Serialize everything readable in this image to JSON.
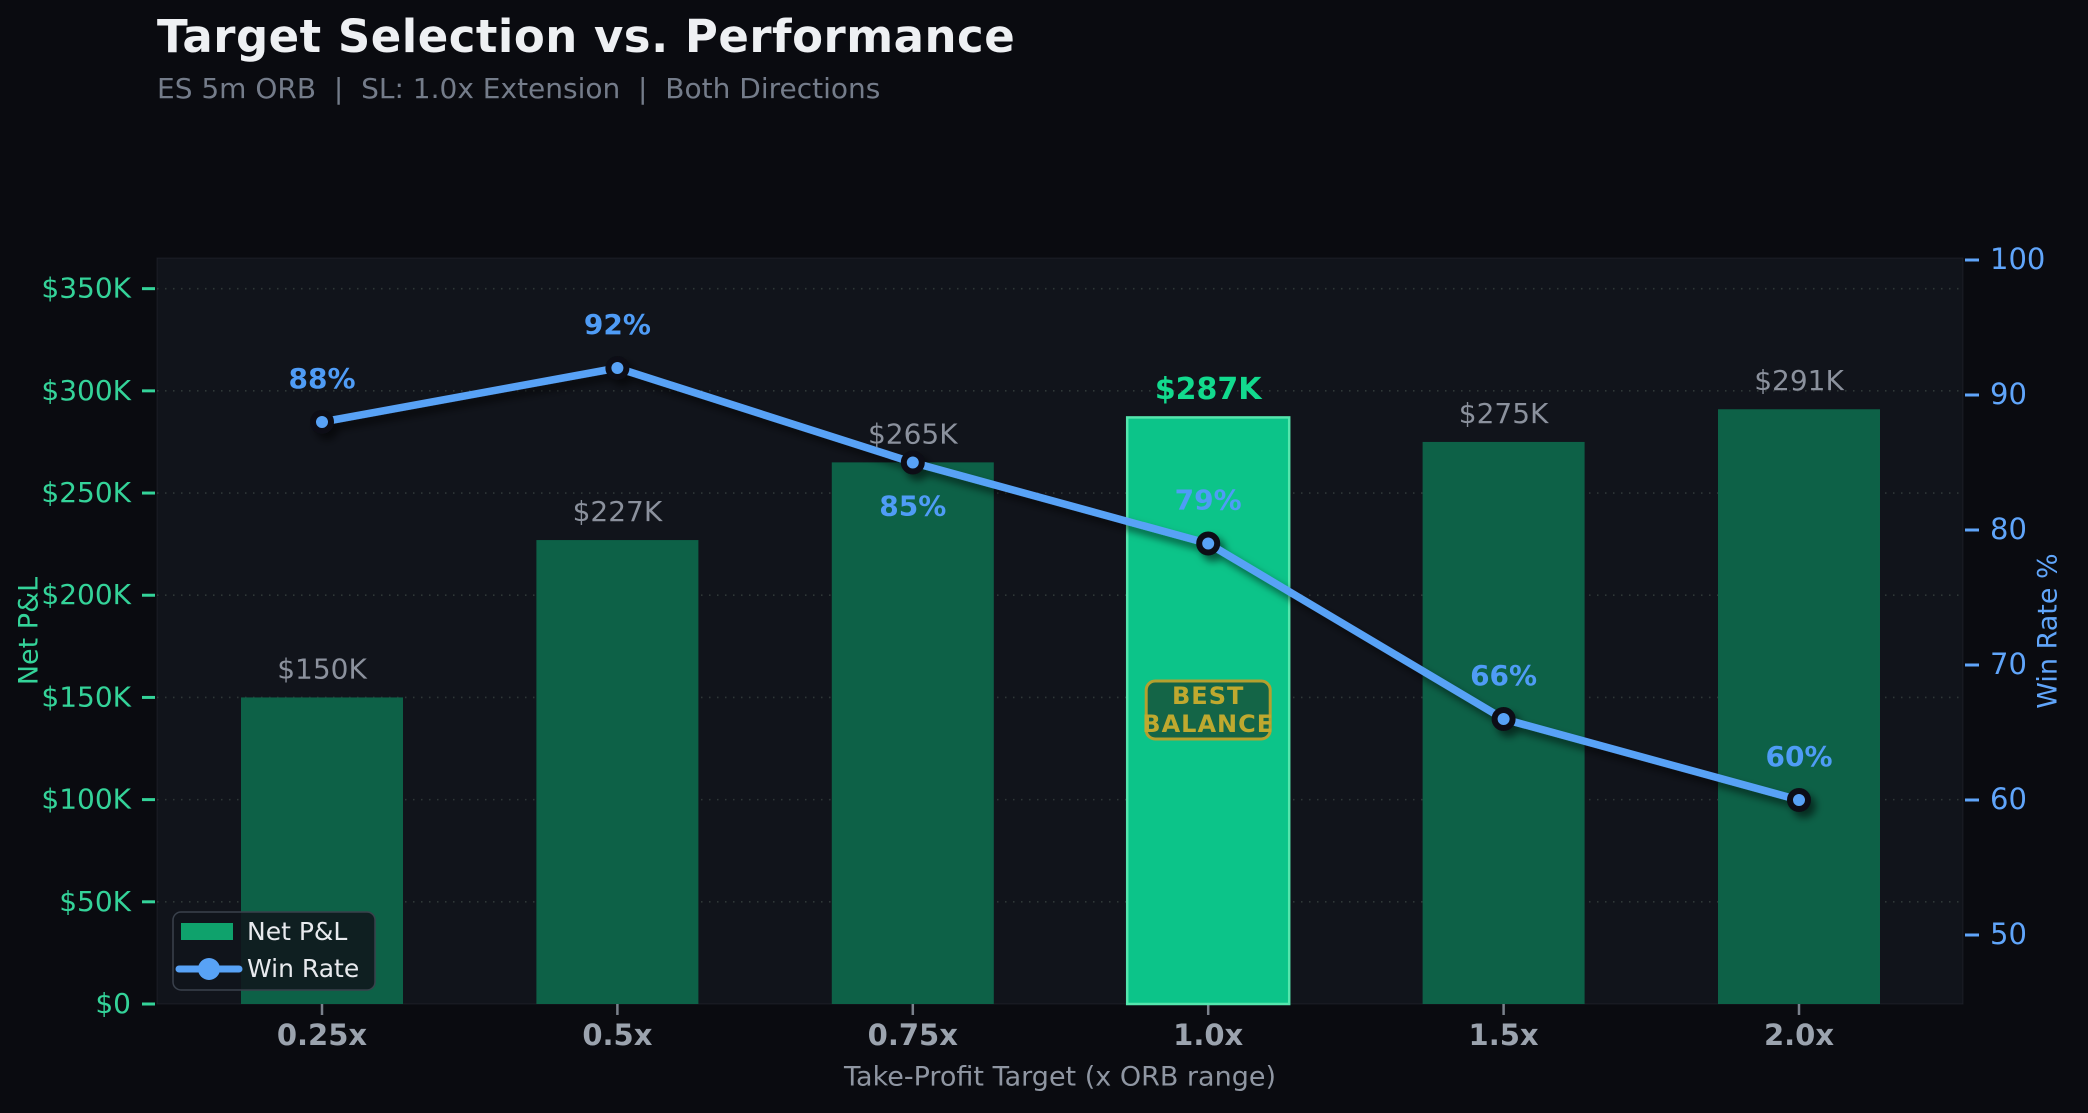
{
  "header": {
    "title": "Target Selection vs. Performance",
    "subtitle": "ES 5m ORB  |  SL: 1.0x Extension  |  Both Directions"
  },
  "chart_data": {
    "type": "combo-bar-line",
    "categories": [
      "0.25x",
      "0.5x",
      "0.75x",
      "1.0x",
      "1.5x",
      "2.0x"
    ],
    "series": [
      {
        "name": "Net P&L",
        "type": "bar",
        "axis": "left",
        "values": [
          150,
          227,
          265,
          287,
          275,
          291
        ],
        "labels": [
          "$150K",
          "$227K",
          "$265K",
          "$287K",
          "$275K",
          "$291K"
        ],
        "highlight_index": 3
      },
      {
        "name": "Win Rate",
        "type": "line",
        "axis": "right",
        "values": [
          88,
          92,
          85,
          79,
          66,
          60
        ],
        "labels": [
          "88%",
          "92%",
          "85%",
          "79%",
          "66%",
          "60%"
        ],
        "label_positions": [
          "above",
          "above",
          "below",
          "above",
          "above",
          "above"
        ]
      }
    ],
    "left_axis": {
      "title": "Net P&L",
      "tick_labels": [
        "$0",
        "$50K",
        "$100K",
        "$150K",
        "$200K",
        "$250K",
        "$300K",
        "$350K"
      ],
      "tick_values": [
        0,
        50,
        100,
        150,
        200,
        250,
        300,
        350
      ],
      "range": [
        0,
        365
      ]
    },
    "right_axis": {
      "title": "Win Rate %",
      "tick_labels": [
        "50",
        "60",
        "70",
        "80",
        "90",
        "100"
      ],
      "tick_values": [
        50,
        60,
        70,
        80,
        90,
        100
      ],
      "range": [
        44.9,
        100.3
      ]
    },
    "x_axis": {
      "title": "Take-Profit Target (x ORB range)"
    },
    "legend": {
      "position": "bottom-left",
      "items": [
        {
          "label": "Net P&L",
          "marker": "bar-swatch"
        },
        {
          "label": "Win Rate",
          "marker": "line-dot"
        }
      ]
    },
    "annotation_badge": {
      "line1": "BEST",
      "line2": "BALANCE",
      "target_category": "1.0x"
    },
    "grid": "horizontal-dotted"
  },
  "colors": {
    "page_bg": "#0a0b10",
    "plot_bg": "#11141b",
    "plot_border": "rgba(150,160,180,0.10)",
    "bar": "#0d6147",
    "bar_highlight": "#0cc489",
    "bar_highlight_border": "#55e6ad",
    "bar_label": "#8b919d",
    "bar_label_highlight": "#12da8e",
    "line": "#58a2f6",
    "marker_fill": "#58a2f6",
    "marker_stroke": "#0a0e13",
    "line_label": "#4f9cf6",
    "left_axis": "#34d399",
    "right_axis": "#60a5fa",
    "x_tick_label": "#9ba3ae",
    "x_tick_mark": "#7a818c",
    "x_title": "#8f96a2",
    "grid": "#4e5a54",
    "badge_bg": "#146547",
    "badge_border": "#b5a02e",
    "badge_text": "#bfa92f",
    "legend_bg": "rgba(16,20,27,0.85)",
    "legend_border": "#3a414c",
    "legend_text": "#e8eaee",
    "title": "#eef0f3",
    "subtitle": "#747c8a"
  }
}
